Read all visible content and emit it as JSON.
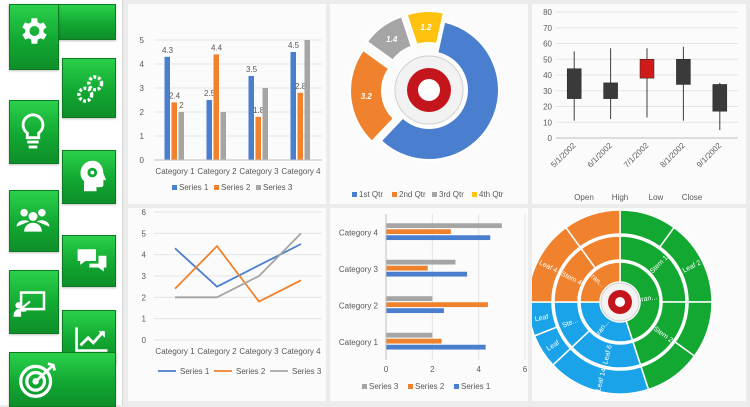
{
  "sidebar": {
    "icons": [
      "gear-icon",
      "gears-icon",
      "lightbulb-icon",
      "head-gear-icon",
      "team-icon",
      "chat-icon",
      "presentation-icon",
      "trend-icon",
      "target-icon"
    ],
    "accent": "#15b339"
  },
  "chart_data": [
    {
      "type": "bar",
      "categories": [
        "Category 1",
        "Category 2",
        "Category 3",
        "Category 4"
      ],
      "series": [
        {
          "name": "Series 1",
          "values": [
            4.3,
            2.5,
            3.5,
            4.5
          ],
          "color": "#4a7fcf"
        },
        {
          "name": "Series 2",
          "values": [
            2.4,
            4.4,
            1.8,
            2.8
          ],
          "color": "#f0822d"
        },
        {
          "name": "Series 3",
          "values": [
            2,
            2,
            3,
            5
          ],
          "color": "#a5a5a5"
        }
      ],
      "data_labels": [
        [
          "4.3",
          "2.4",
          "2"
        ],
        [
          "2.5",
          "4.4",
          ""
        ],
        [
          "3.5",
          "1.8",
          ""
        ],
        [
          "4.5",
          "2.8",
          ""
        ]
      ],
      "yticks": [
        "0",
        "1",
        "2",
        "3",
        "4",
        "5"
      ],
      "ylim": [
        0,
        5
      ],
      "legend": "bottom"
    },
    {
      "type": "pie",
      "categories": [
        "1st Qtr",
        "2nd Qtr",
        "3rd Qtr",
        "4th Qtr"
      ],
      "values": [
        8.2,
        3.2,
        1.4,
        1.2
      ],
      "labels": [
        "",
        "3.2",
        "1.4",
        "1.2"
      ],
      "colors": [
        "#4a7fcf",
        "#f0822d",
        "#a5a5a5",
        "#ffc20e"
      ],
      "legend": "bottom"
    },
    {
      "type": "candlestick",
      "categories": [
        "5/1/2002",
        "6/1/2002",
        "7/1/2002",
        "8/1/2002",
        "9/1/2002"
      ],
      "series": [
        {
          "name": "Open",
          "values": [
            44,
            35,
            38,
            50,
            34
          ]
        },
        {
          "name": "High",
          "values": [
            55,
            57,
            57,
            58,
            35
          ]
        },
        {
          "name": "Low",
          "values": [
            11,
            12,
            13,
            11,
            5
          ]
        },
        {
          "name": "Close",
          "values": [
            25,
            25,
            50,
            34,
            17
          ]
        }
      ],
      "yticks": [
        "0",
        "10",
        "20",
        "30",
        "40",
        "50",
        "60",
        "70",
        "80"
      ],
      "ylim": [
        0,
        80
      ],
      "legend": "bottom"
    },
    {
      "type": "line",
      "categories": [
        "Category 1",
        "Category 2",
        "Category 3",
        "Category 4"
      ],
      "series": [
        {
          "name": "Series 1",
          "values": [
            4.3,
            2.5,
            3.5,
            4.5
          ],
          "color": "#4a7fcf"
        },
        {
          "name": "Series 2",
          "values": [
            2.4,
            4.4,
            1.8,
            2.8
          ],
          "color": "#f0822d"
        },
        {
          "name": "Series 3",
          "values": [
            2,
            2,
            3,
            5
          ],
          "color": "#a5a5a5"
        }
      ],
      "yticks": [
        "0",
        "1",
        "2",
        "3",
        "4",
        "5",
        "6"
      ],
      "ylim": [
        0,
        6
      ],
      "legend": "bottom"
    },
    {
      "type": "bar",
      "orientation": "horizontal",
      "categories": [
        "Category 1",
        "Category 2",
        "Category 3",
        "Category 4"
      ],
      "series": [
        {
          "name": "Series 1",
          "values": [
            4.3,
            2.5,
            3.5,
            4.5
          ],
          "color": "#4a7fcf"
        },
        {
          "name": "Series 2",
          "values": [
            2.4,
            4.4,
            1.8,
            2.8
          ],
          "color": "#f0822d"
        },
        {
          "name": "Series 3",
          "values": [
            2,
            2,
            3,
            5
          ],
          "color": "#a5a5a5"
        }
      ],
      "xticks": [
        "0",
        "2",
        "4",
        "6"
      ],
      "xlim": [
        0,
        6
      ],
      "legend": "bottom"
    },
    {
      "type": "sunburst",
      "rings": [
        {
          "name": "inner",
          "segments": [
            {
              "label": "Bran... 1",
              "value": 45,
              "color": "#12a832"
            },
            {
              "label": "Bran... 2",
              "value": 30,
              "color": "#1aa3e8"
            },
            {
              "label": "Bran... 3",
              "value": 25,
              "color": "#f0822d"
            }
          ]
        },
        {
          "name": "middle",
          "segments": [
            {
              "label": "Stem 1",
              "value": 25,
              "color": "#12a832"
            },
            {
              "label": "Stem 2",
              "value": 20,
              "color": "#12a832"
            },
            {
              "label": "Leaf 6",
              "value": 18,
              "color": "#1aa3e8"
            },
            {
              "label": "Ste...",
              "value": 12,
              "color": "#1aa3e8"
            },
            {
              "label": "Stem 4",
              "value": 15,
              "color": "#f0822d"
            },
            {
              "label": "",
              "value": 10,
              "color": "#f0822d"
            }
          ]
        },
        {
          "name": "outer",
          "segments": [
            {
              "label": "",
              "value": 10,
              "color": "#12a832"
            },
            {
              "label": "Leaf 2",
              "value": 15,
              "color": "#12a832"
            },
            {
              "label": "",
              "value": 10,
              "color": "#12a832"
            },
            {
              "label": "",
              "value": 10,
              "color": "#12a832"
            },
            {
              "label": "Leaf 14",
              "value": 18,
              "color": "#1aa3e8"
            },
            {
              "label": "Leaf",
              "value": 6,
              "color": "#1aa3e8"
            },
            {
              "label": "Leaf",
              "value": 6,
              "color": "#1aa3e8"
            },
            {
              "label": "Leaf 4",
              "value": 15,
              "color": "#f0822d"
            },
            {
              "label": "",
              "value": 10,
              "color": "#f0822d"
            }
          ]
        }
      ]
    }
  ]
}
